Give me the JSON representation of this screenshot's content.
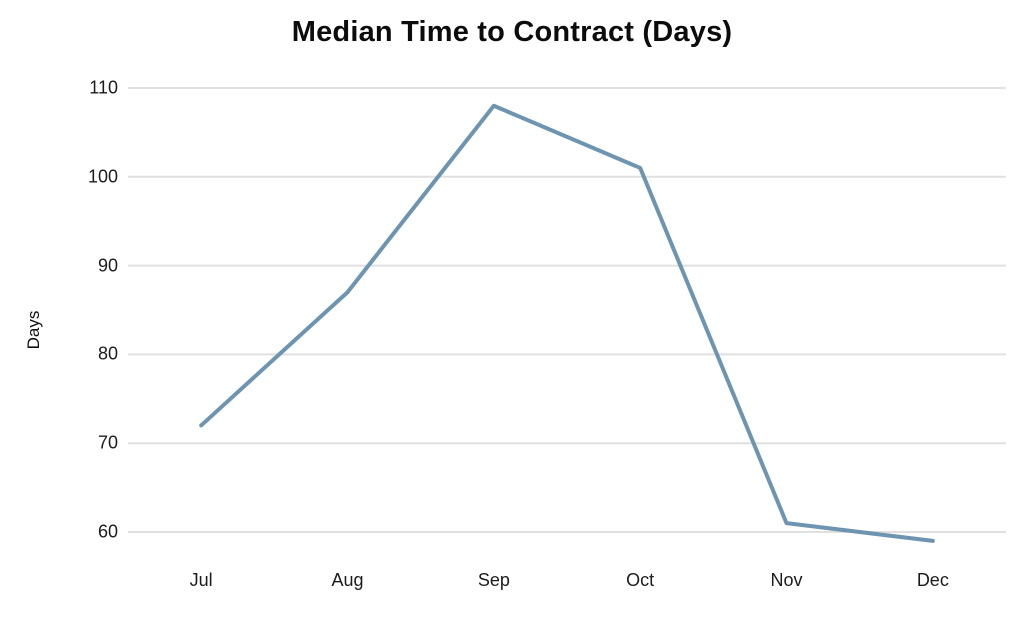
{
  "chart_data": {
    "type": "line",
    "title": "Median Time to Contract (Days)",
    "ylabel": "Days",
    "xlabel": "",
    "categories": [
      "Jul",
      "Aug",
      "Sep",
      "Oct",
      "Nov",
      "Dec"
    ],
    "series": [
      {
        "name": "Median Time to Contract (Days)",
        "values": [
          72,
          87,
          108,
          101,
          61,
          59
        ]
      }
    ],
    "yticks": [
      110,
      100,
      90,
      80,
      70,
      60
    ],
    "ylim": [
      60,
      110
    ],
    "grid": "horizontal-only",
    "legend": "none",
    "line_color": "#6d94b0",
    "gridline_color": "#e0e0e0",
    "background_color": "#ffffff",
    "text_color": "#1c1c1c"
  }
}
